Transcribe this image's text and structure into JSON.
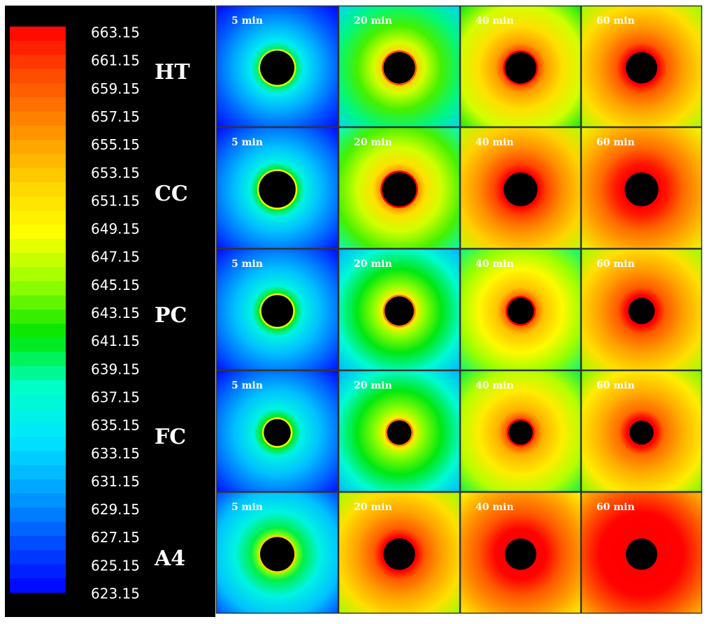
{
  "chart_data": {
    "type": "heatmap",
    "title": "",
    "colorbar": {
      "min": 623.15,
      "max": 663.15,
      "tick_labels": [
        "663.15",
        "661.15",
        "659.15",
        "657.15",
        "655.15",
        "653.15",
        "651.15",
        "649.15",
        "647.15",
        "645.15",
        "643.15",
        "641.15",
        "639.15",
        "637.15",
        "635.15",
        "633.15",
        "631.15",
        "629.15",
        "627.15",
        "625.15",
        "623.15"
      ],
      "color_stops": [
        "#0000ff",
        "#0050ff",
        "#00a5ff",
        "#00e6ff",
        "#00ffc8",
        "#00e600",
        "#96ff00",
        "#ffff00",
        "#ffd000",
        "#ff9000",
        "#ff5000",
        "#ff0000"
      ]
    },
    "rows": [
      "HT",
      "CC",
      "PC",
      "FC",
      "A4"
    ],
    "time_labels": [
      "5 min",
      "20 min",
      "40 min",
      "60 min"
    ],
    "hole_relative_radius": [
      [
        0.14,
        0.13,
        0.13,
        0.13
      ],
      [
        0.15,
        0.14,
        0.14,
        0.14
      ],
      [
        0.13,
        0.12,
        0.11,
        0.11
      ],
      [
        0.11,
        0.1,
        0.1,
        0.1
      ],
      [
        0.14,
        0.13,
        0.13,
        0.13
      ]
    ],
    "mean_temperature": [
      [
        631,
        643,
        651,
        655
      ],
      [
        632,
        647,
        656,
        658
      ],
      [
        632,
        641,
        649,
        655
      ],
      [
        632,
        641,
        650,
        654
      ],
      [
        636,
        655,
        659,
        663
      ]
    ]
  }
}
